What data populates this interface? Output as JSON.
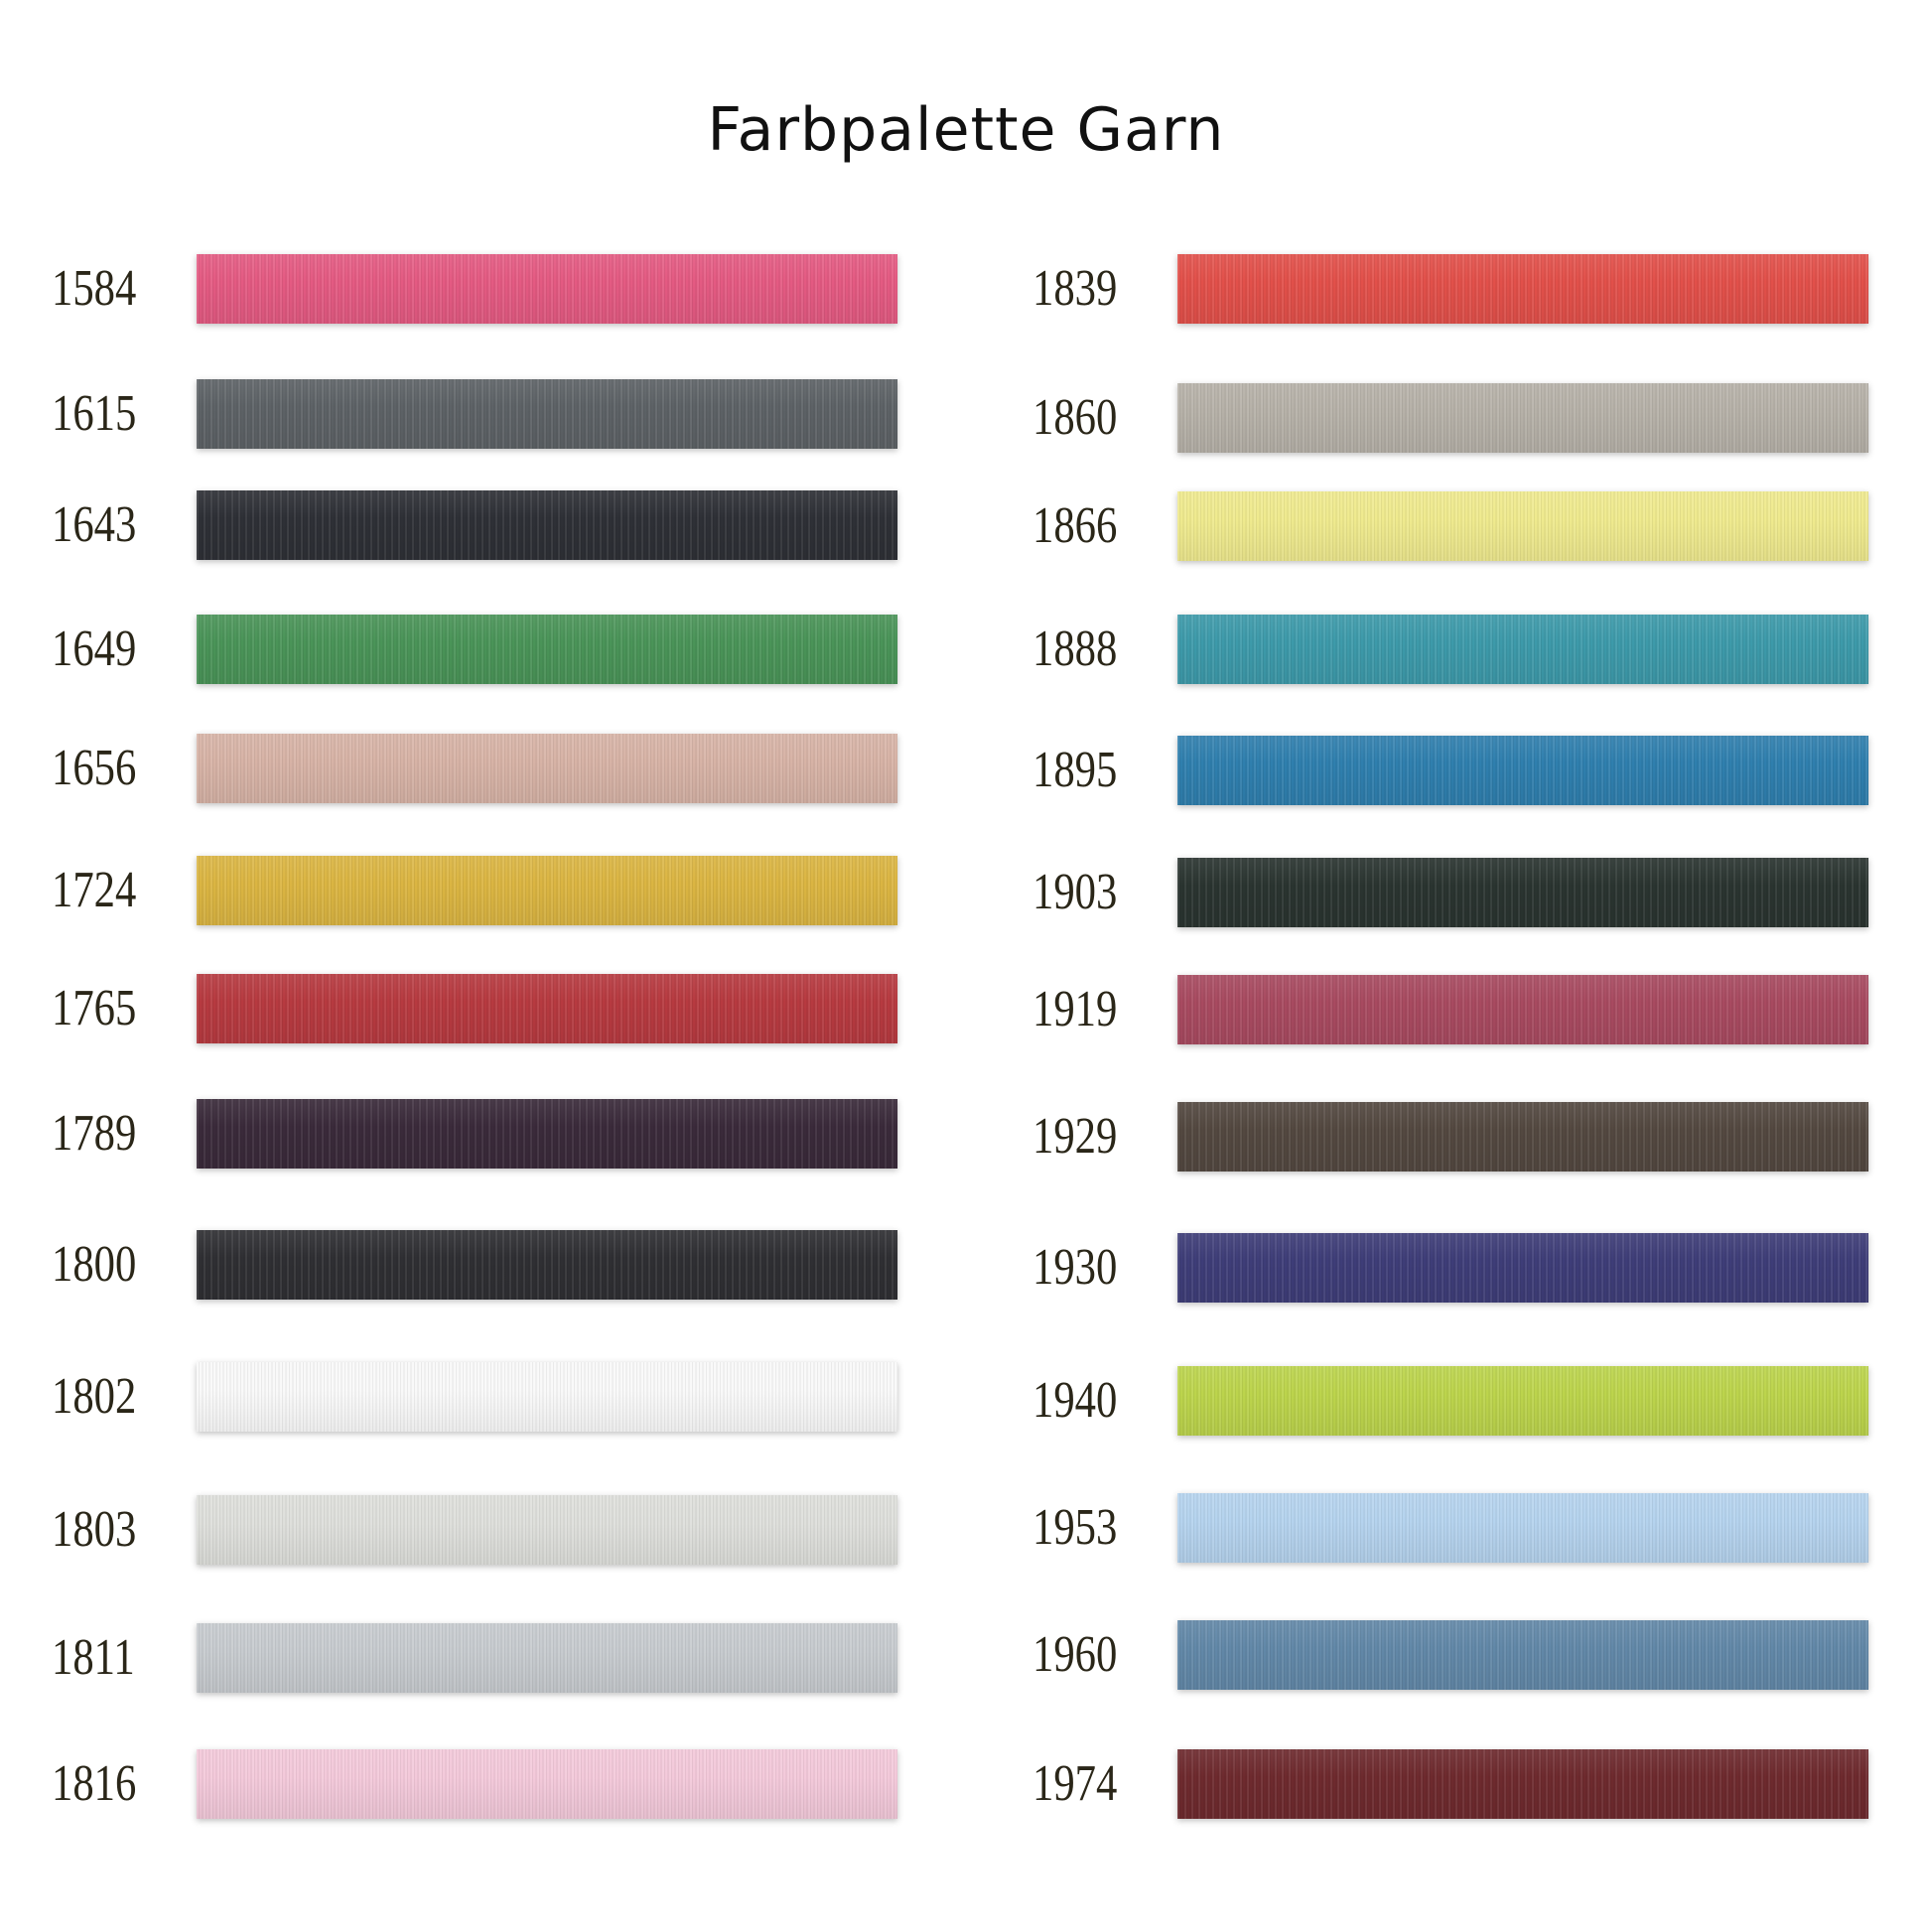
{
  "title": "Farbpalette Garn",
  "left": [
    {
      "code": "1584",
      "color": "#e45a82"
    },
    {
      "code": "1615",
      "color": "#5d6266"
    },
    {
      "code": "1643",
      "color": "#2e3036"
    },
    {
      "code": "1649",
      "color": "#4a9458"
    },
    {
      "code": "1656",
      "color": "#d7b3a6"
    },
    {
      "code": "1724",
      "color": "#dbb542"
    },
    {
      "code": "1765",
      "color": "#b73a40"
    },
    {
      "code": "1789",
      "color": "#3a2a3a"
    },
    {
      "code": "1800",
      "color": "#2f2f33"
    },
    {
      "code": "1802",
      "color": "#f9f9f9"
    },
    {
      "code": "1803",
      "color": "#dedfdb"
    },
    {
      "code": "1811",
      "color": "#c7cbcf"
    },
    {
      "code": "1816",
      "color": "#f3c9da"
    }
  ],
  "right": [
    {
      "code": "1839",
      "color": "#e2504a"
    },
    {
      "code": "1860",
      "color": "#b6b1a8"
    },
    {
      "code": "1866",
      "color": "#efea8e"
    },
    {
      "code": "1888",
      "color": "#3d9aaa"
    },
    {
      "code": "1895",
      "color": "#2f7fae"
    },
    {
      "code": "1903",
      "color": "#2a3430"
    },
    {
      "code": "1919",
      "color": "#a84a60"
    },
    {
      "code": "1929",
      "color": "#534840"
    },
    {
      "code": "1930",
      "color": "#3e3d78"
    },
    {
      "code": "1940",
      "color": "#bcd44c"
    },
    {
      "code": "1953",
      "color": "#b5d3ee"
    },
    {
      "code": "1960",
      "color": "#6288a8"
    },
    {
      "code": "1974",
      "color": "#6e2a2e"
    }
  ]
}
